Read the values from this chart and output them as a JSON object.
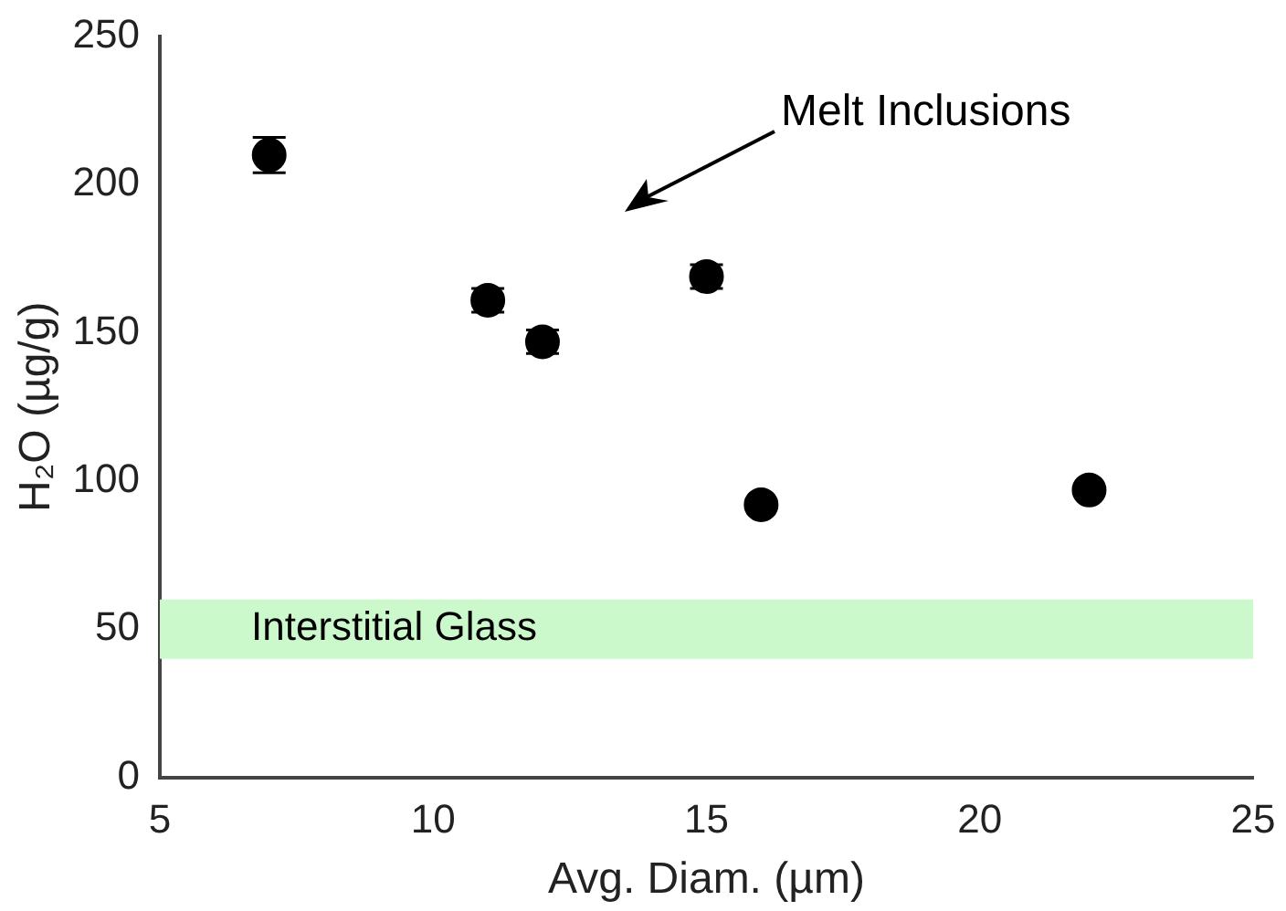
{
  "chart_data": {
    "type": "scatter",
    "xlabel": "Avg. Diam. (µm)",
    "ylabel": "H₂O (µg/g)",
    "x": [
      7,
      11,
      12,
      15,
      16,
      22
    ],
    "values": [
      210,
      161,
      147,
      169,
      92,
      97
    ],
    "errors": [
      6,
      4,
      4,
      4,
      null,
      null
    ],
    "color": "#000000",
    "marker": "circle",
    "xlim": [
      5,
      25
    ],
    "xticks": [
      5,
      10,
      15,
      20,
      25
    ],
    "ylim": [
      0,
      250
    ],
    "yticks": [
      0,
      50,
      100,
      150,
      200,
      250
    ],
    "grid": false,
    "legend": false,
    "bands": [
      {
        "axis": "y",
        "from": 40,
        "to": 60,
        "label": "Interstitial Glass",
        "color": "#ccf9cc"
      }
    ],
    "annotations": [
      "Melt Inclusions"
    ]
  }
}
